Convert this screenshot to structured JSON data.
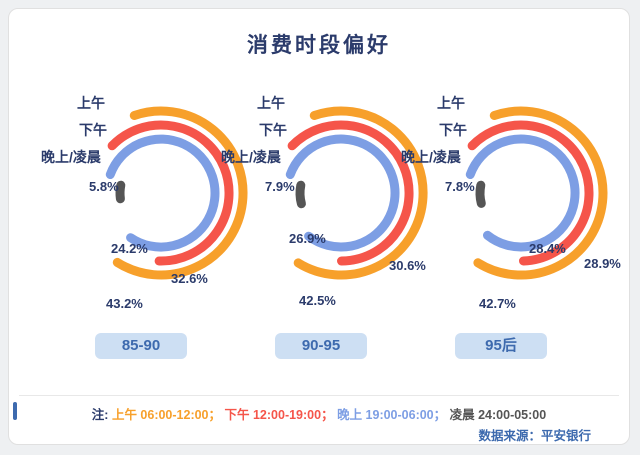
{
  "title": "消费时段偏好",
  "chart_data": {
    "type": "arc-rings",
    "description": "Three concentric-arc ring charts showing consumption time-period preference by age cohort",
    "categories": [
      {
        "key": "morning",
        "label": "上午",
        "color": "#F7A02B"
      },
      {
        "key": "afternoon",
        "label": "下午",
        "color": "#F5554A"
      },
      {
        "key": "evening",
        "label": "晚上",
        "color": "#7D9EE4"
      },
      {
        "key": "late-night",
        "label": "凌晨",
        "color": "#555555"
      }
    ],
    "side_labels": [
      "上午",
      "下午",
      "晚上/凌晨"
    ],
    "groups": [
      {
        "label": "85-90",
        "values": [
          43.2,
          32.6,
          24.2,
          5.8
        ]
      },
      {
        "label": "90-95",
        "values": [
          42.5,
          30.6,
          26.9,
          7.9
        ]
      },
      {
        "label": "95后",
        "values": [
          42.7,
          28.9,
          28.4,
          7.8
        ]
      }
    ],
    "unit": "%",
    "legend_position": "bottom"
  },
  "legend_note": {
    "prefix": "注:",
    "separator": "；",
    "items": [
      {
        "label": "上午",
        "time": "06:00-12:00"
      },
      {
        "label": "下午",
        "time": "12:00-19:00"
      },
      {
        "label": "晚上",
        "time": "19:00-06:00"
      },
      {
        "label": "凌晨",
        "time": "24:00-05:00"
      }
    ]
  },
  "source": "数据来源：平安银行",
  "colors": {
    "title": "#2B3B6B",
    "badge_bg": "#CDDFF3",
    "badge_text": "#3D6AAE",
    "source_text": "#3D6AAE",
    "card_bg": "#FFFFFF",
    "page_bg": "#EEF0F2"
  }
}
